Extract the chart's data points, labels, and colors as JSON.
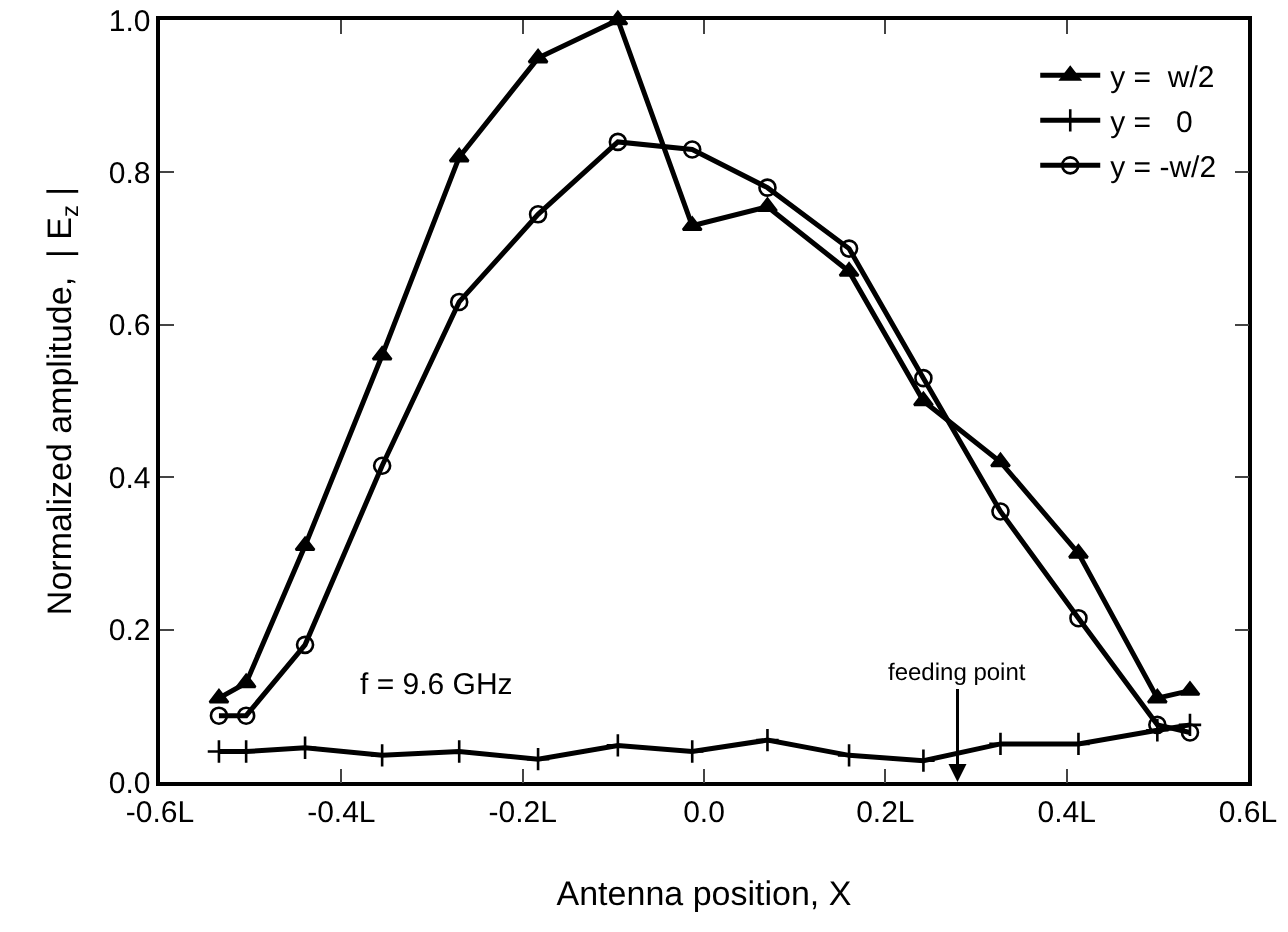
{
  "chart_data": {
    "type": "line",
    "xlabel": "Antenna position, X",
    "ylabel": "Normalized amplitude,  | E$_{z}$ |",
    "x": [
      -0.535,
      -0.505,
      -0.44,
      -0.355,
      -0.27,
      -0.183,
      -0.095,
      -0.013,
      0.07,
      0.16,
      0.242,
      0.327,
      0.413,
      0.5,
      0.536
    ],
    "series": [
      {
        "name": "y =  w/2",
        "color": "#000000",
        "marker": "triangle",
        "values": [
          0.11,
          0.13,
          0.31,
          0.56,
          0.82,
          0.95,
          1.0,
          0.73,
          0.755,
          0.67,
          0.5,
          0.42,
          0.3,
          0.11,
          0.12
        ]
      },
      {
        "name": "y =   0",
        "color": "#000000",
        "marker": "cross",
        "values": [
          0.04,
          0.04,
          0.045,
          0.035,
          0.04,
          0.03,
          0.048,
          0.04,
          0.055,
          0.035,
          0.028,
          0.05,
          0.05,
          0.068,
          0.075
        ]
      },
      {
        "name": "y = -w/2",
        "color": "#000000",
        "marker": "circle",
        "values": [
          0.087,
          0.087,
          0.18,
          0.415,
          0.63,
          0.745,
          0.84,
          0.83,
          0.78,
          0.7,
          0.53,
          0.355,
          0.215,
          0.075,
          0.065
        ]
      }
    ],
    "xlim": [
      -0.6,
      0.6
    ],
    "xticks": [
      {
        "value": -0.6,
        "label": "-0.6L"
      },
      {
        "value": -0.4,
        "label": "-0.4L"
      },
      {
        "value": -0.2,
        "label": "-0.2L"
      },
      {
        "value": 0,
        "label": "0.0"
      },
      {
        "value": 0.2,
        "label": "0.2L"
      },
      {
        "value": 0.4,
        "label": "0.4L"
      },
      {
        "value": 0.6,
        "label": "0.6L"
      }
    ],
    "ylim": [
      0,
      1
    ],
    "yticks": [
      {
        "value": 0,
        "label": "0.0"
      },
      {
        "value": 0.2,
        "label": "0.2"
      },
      {
        "value": 0.4,
        "label": "0.4"
      },
      {
        "value": 0.6,
        "label": "0.6"
      },
      {
        "value": 0.8,
        "label": "0.8"
      },
      {
        "value": 1,
        "label": "1.0"
      }
    ],
    "annotations": [
      "f = 9.6 GHz",
      "feeding point"
    ],
    "legend": "top right",
    "grid": false,
    "line_style": "solid"
  }
}
